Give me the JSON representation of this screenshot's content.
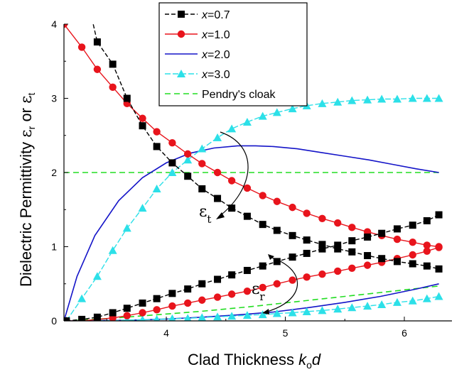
{
  "chart_data": {
    "type": "line",
    "xlabel": {
      "text": "Clad Thickness ",
      "var": "k",
      "sub": "o",
      "tail": "d"
    },
    "ylabel": {
      "text": "Dielectric Permittivity ",
      "sym1": "ε",
      "sub1": "r",
      "mid": " or ",
      "sym2": "ε",
      "sub2": "t"
    },
    "xlim": [
      3.14,
      6.4
    ],
    "ylim": [
      0,
      4
    ],
    "xticks": [
      4,
      5,
      6
    ],
    "yticks": [
      0,
      1,
      2,
      3,
      4
    ],
    "grid": false,
    "legend_position": "top-center",
    "annotations": [
      {
        "sym": "ε",
        "sub": "t",
        "label": "eps-t"
      },
      {
        "sym": "ε",
        "sub": "r",
        "label": "eps-r"
      }
    ],
    "series": [
      {
        "name": "x=0.7",
        "var": "x",
        "eq": "=0.7",
        "color": "#000000",
        "marker": "square",
        "dash": "6,3",
        "curves": [
          {
            "role": "eps_t",
            "x": [
              3.42,
              3.55,
              3.67,
              3.8,
              3.92,
              4.05,
              4.18,
              4.3,
              4.43,
              4.55,
              4.68,
              4.81,
              4.93,
              5.06,
              5.18,
              5.31,
              5.44,
              5.56,
              5.69,
              5.81,
              5.94,
              6.07,
              6.19,
              6.29
            ],
            "y": [
              3.76,
              3.46,
              3.0,
              2.63,
              2.35,
              2.13,
              1.95,
              1.78,
              1.65,
              1.52,
              1.41,
              1.3,
              1.22,
              1.15,
              1.09,
              1.03,
              0.97,
              0.93,
              0.88,
              0.84,
              0.8,
              0.77,
              0.74,
              0.7
            ]
          },
          {
            "role": "eps_r",
            "x": [
              3.16,
              3.29,
              3.42,
              3.55,
              3.67,
              3.8,
              3.92,
              4.05,
              4.18,
              4.3,
              4.43,
              4.55,
              4.68,
              4.81,
              4.93,
              5.06,
              5.18,
              5.31,
              5.44,
              5.56,
              5.69,
              5.81,
              5.94,
              6.07,
              6.19,
              6.29
            ],
            "y": [
              0.0,
              0.02,
              0.05,
              0.11,
              0.17,
              0.24,
              0.3,
              0.37,
              0.43,
              0.5,
              0.56,
              0.62,
              0.68,
              0.74,
              0.8,
              0.86,
              0.91,
              0.97,
              1.02,
              1.08,
              1.13,
              1.18,
              1.24,
              1.29,
              1.35,
              1.43
            ]
          }
        ]
      },
      {
        "name": "x=1.0",
        "var": "x",
        "eq": "=1.0",
        "color": "#e8141c",
        "marker": "circle",
        "dash": "",
        "curves": [
          {
            "role": "eps_t",
            "x": [
              3.14,
              3.29,
              3.42,
              3.55,
              3.67,
              3.8,
              3.92,
              4.05,
              4.18,
              4.3,
              4.43,
              4.55,
              4.68,
              4.81,
              4.93,
              5.06,
              5.18,
              5.31,
              5.44,
              5.56,
              5.69,
              5.81,
              5.94,
              6.07,
              6.19,
              6.29
            ],
            "y": [
              4.0,
              3.69,
              3.39,
              3.15,
              2.93,
              2.73,
              2.55,
              2.4,
              2.25,
              2.12,
              2.0,
              1.89,
              1.79,
              1.69,
              1.61,
              1.53,
              1.45,
              1.38,
              1.32,
              1.26,
              1.2,
              1.15,
              1.1,
              1.06,
              1.02,
              1.0
            ]
          },
          {
            "role": "eps_r",
            "x": [
              3.16,
              3.29,
              3.42,
              3.55,
              3.67,
              3.8,
              3.92,
              4.05,
              4.18,
              4.3,
              4.43,
              4.55,
              4.68,
              4.81,
              4.93,
              5.06,
              5.18,
              5.31,
              5.44,
              5.56,
              5.69,
              5.81,
              5.94,
              6.07,
              6.19,
              6.29
            ],
            "y": [
              0.0,
              0.0,
              0.02,
              0.04,
              0.07,
              0.11,
              0.15,
              0.2,
              0.24,
              0.28,
              0.32,
              0.36,
              0.4,
              0.45,
              0.5,
              0.55,
              0.59,
              0.63,
              0.67,
              0.71,
              0.75,
              0.79,
              0.84,
              0.89,
              0.94,
              0.99
            ]
          }
        ]
      },
      {
        "name": "x=2.0",
        "var": "x",
        "eq": "=2.0",
        "color": "#1414c8",
        "marker": "none",
        "dash": "",
        "curves": [
          {
            "role": "eps_t",
            "x": [
              3.14,
              3.25,
              3.4,
              3.6,
              3.8,
              4.0,
              4.2,
              4.4,
              4.6,
              4.75,
              4.9,
              5.1,
              5.3,
              5.5,
              5.7,
              5.9,
              6.1,
              6.29
            ],
            "y": [
              0.0,
              0.6,
              1.15,
              1.62,
              1.93,
              2.13,
              2.26,
              2.33,
              2.36,
              2.36,
              2.35,
              2.32,
              2.27,
              2.22,
              2.17,
              2.11,
              2.05,
              2.0
            ]
          },
          {
            "role": "eps_r",
            "x": [
              3.14,
              3.4,
              3.7,
              4.0,
              4.3,
              4.6,
              4.9,
              5.2,
              5.5,
              5.8,
              6.1,
              6.29
            ],
            "y": [
              0.0,
              0.005,
              0.01,
              0.025,
              0.05,
              0.08,
              0.12,
              0.18,
              0.25,
              0.33,
              0.43,
              0.5
            ]
          }
        ]
      },
      {
        "name": "x=3.0",
        "var": "x",
        "eq": "=3.0",
        "color": "#2ce0e8",
        "marker": "triangle",
        "dash": "8,3",
        "curves": [
          {
            "role": "eps_t",
            "x": [
              3.16,
              3.29,
              3.42,
              3.55,
              3.67,
              3.8,
              3.92,
              4.05,
              4.18,
              4.3,
              4.43,
              4.55,
              4.68,
              4.81,
              4.93,
              5.06,
              5.18,
              5.31,
              5.44,
              5.56,
              5.69,
              5.81,
              5.94,
              6.07,
              6.19,
              6.29
            ],
            "y": [
              0.0,
              0.3,
              0.6,
              0.95,
              1.25,
              1.52,
              1.78,
              2.0,
              2.17,
              2.32,
              2.47,
              2.59,
              2.68,
              2.76,
              2.81,
              2.86,
              2.9,
              2.93,
              2.95,
              2.97,
              2.98,
              2.99,
              2.99,
              3.0,
              3.0,
              3.0
            ]
          },
          {
            "role": "eps_r",
            "x": [
              3.16,
              3.29,
              3.42,
              3.55,
              3.67,
              3.8,
              3.92,
              4.05,
              4.18,
              4.3,
              4.43,
              4.55,
              4.68,
              4.81,
              4.93,
              5.06,
              5.18,
              5.31,
              5.44,
              5.56,
              5.69,
              5.81,
              5.94,
              6.07,
              6.19,
              6.29
            ],
            "y": [
              0.0,
              0.0,
              0.0,
              0.005,
              0.01,
              0.015,
              0.02,
              0.03,
              0.035,
              0.045,
              0.055,
              0.065,
              0.075,
              0.085,
              0.1,
              0.11,
              0.125,
              0.14,
              0.16,
              0.18,
              0.2,
              0.22,
              0.25,
              0.27,
              0.3,
              0.33
            ]
          }
        ]
      },
      {
        "name": "Pendry's cloak",
        "var": "",
        "eq": "Pendry's cloak",
        "color": "#22dd22",
        "marker": "none",
        "dash": "8,5",
        "curves": [
          {
            "role": "eps_t",
            "x": [
              3.14,
              6.29
            ],
            "y": [
              2.0,
              2.0
            ]
          },
          {
            "role": "eps_r",
            "x": [
              3.14,
              3.5,
              3.9,
              4.3,
              4.7,
              5.1,
              5.5,
              5.9,
              6.29
            ],
            "y": [
              0.0,
              0.03,
              0.08,
              0.13,
              0.19,
              0.26,
              0.33,
              0.4,
              0.47
            ]
          }
        ]
      }
    ]
  }
}
